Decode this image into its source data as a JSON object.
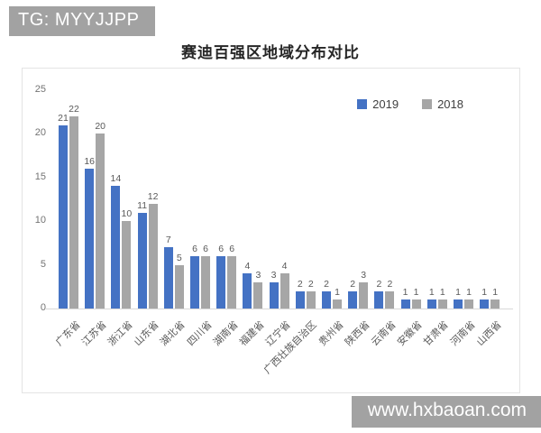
{
  "watermarks": {
    "top_left": "TG: MYYJJPP",
    "bottom_right": "www.hxbaoan.com"
  },
  "chart_data": {
    "type": "bar",
    "title": "赛迪百强区地域分布对比",
    "categories": [
      "广东省",
      "江苏省",
      "浙江省",
      "山东省",
      "湖北省",
      "四川省",
      "湖南省",
      "福建省",
      "辽宁省",
      "广西壮族自治区",
      "贵州省",
      "陕西省",
      "云南省",
      "安徽省",
      "甘肃省",
      "河南省",
      "山西省"
    ],
    "series": [
      {
        "name": "2019",
        "color": "#4472C4",
        "values": [
          21,
          16,
          14,
          11,
          7,
          6,
          6,
          4,
          3,
          2,
          2,
          2,
          2,
          1,
          1,
          1,
          1
        ]
      },
      {
        "name": "2018",
        "color": "#A6A6A6",
        "values": [
          22,
          20,
          10,
          12,
          5,
          6,
          6,
          3,
          4,
          2,
          1,
          3,
          2,
          1,
          1,
          1,
          1
        ]
      }
    ],
    "xlabel": "",
    "ylabel": "",
    "ylim": [
      0,
      25
    ],
    "yticks": [
      0,
      5,
      10,
      15,
      20,
      25
    ],
    "grid": false,
    "data_labels": true,
    "legend_position": "top-right"
  },
  "colors": {
    "bar_2019": "#4472C4",
    "bar_2018": "#A6A6A6",
    "watermark_bg": "#a2a2a2",
    "axis_text": "#595959",
    "frame_border": "#e4e4e4"
  }
}
